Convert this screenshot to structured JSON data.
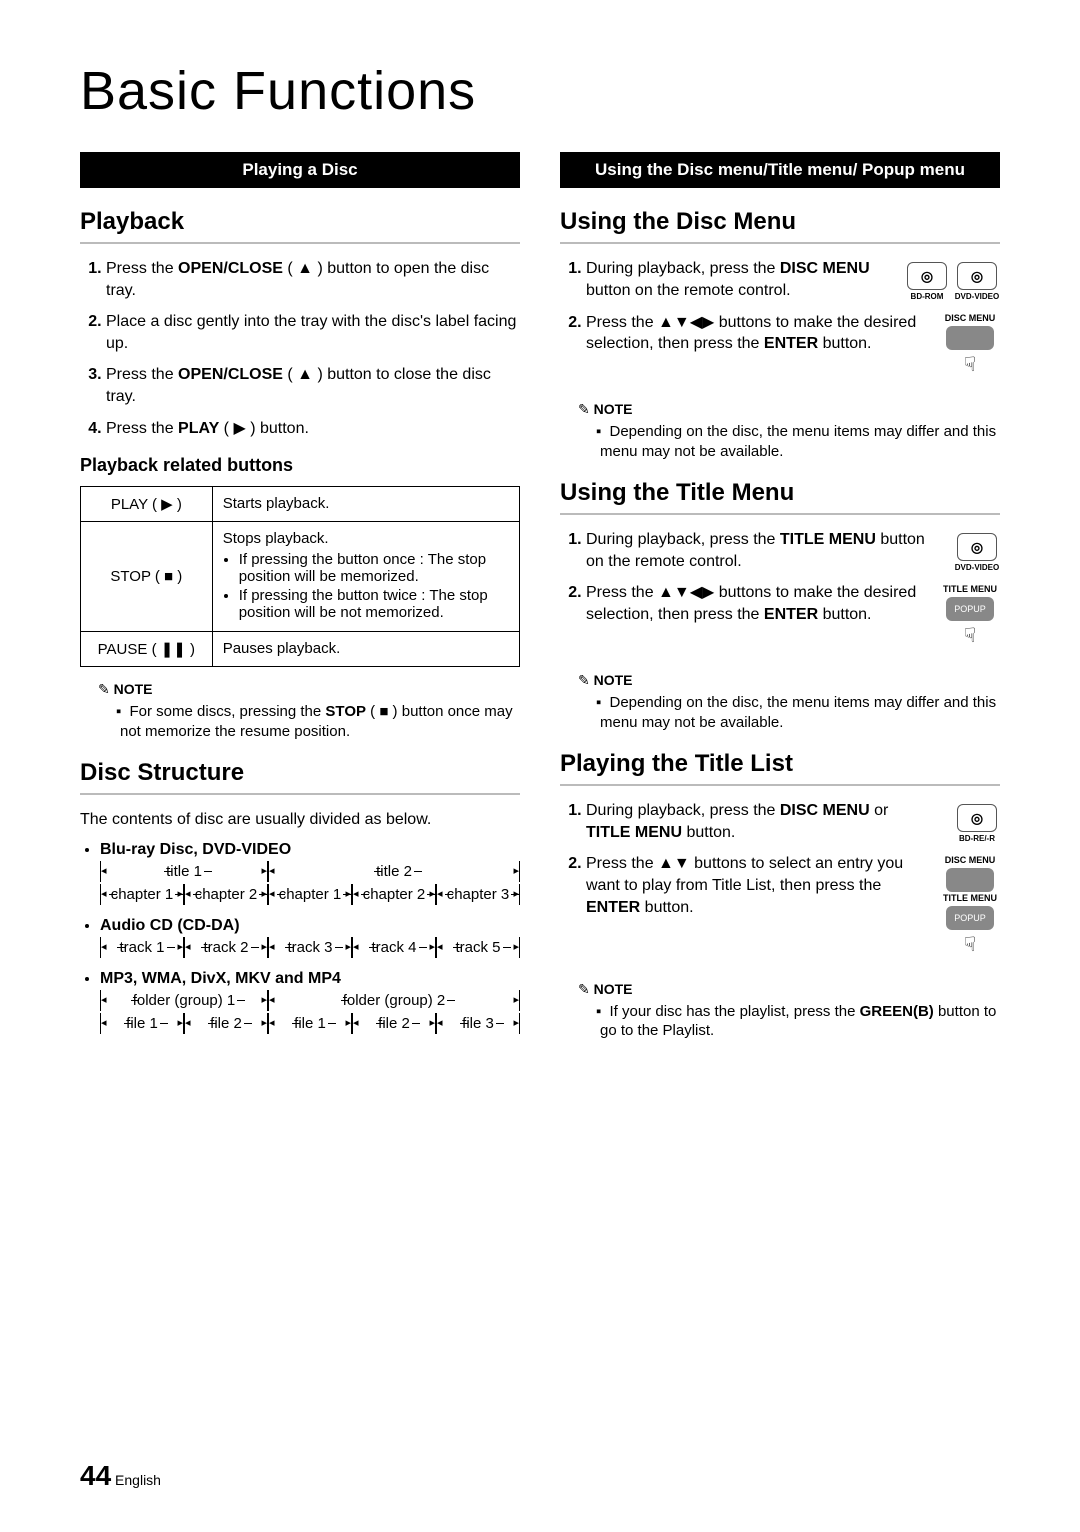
{
  "page": {
    "title": "Basic Functions",
    "number": "44",
    "lang": "English"
  },
  "left": {
    "banner": "Playing a Disc",
    "playback": {
      "heading": "Playback",
      "steps": [
        {
          "pre": "Press the ",
          "bold": "OPEN/CLOSE",
          "post": " ( ▲ ) button to open the disc tray."
        },
        {
          "pre": "",
          "bold": "",
          "post": "Place a disc gently into the tray with the disc's label facing up."
        },
        {
          "pre": "Press the ",
          "bold": "OPEN/CLOSE",
          "post": " ( ▲ ) button to close the disc tray."
        },
        {
          "pre": "Press the ",
          "bold": "PLAY",
          "post": " ( ▶ ) button."
        }
      ]
    },
    "buttons_table": {
      "heading": "Playback related buttons",
      "rows": [
        {
          "label": "PLAY ( ▶ )",
          "desc": "Starts playback.",
          "bullets": []
        },
        {
          "label": "STOP ( ■ )",
          "desc": "Stops playback.",
          "bullets": [
            "If pressing the button once : The stop position will be memorized.",
            "If pressing the button twice : The stop position will be not memorized."
          ]
        },
        {
          "label": "PAUSE ( ❚❚ )",
          "desc": "Pauses playback.",
          "bullets": []
        }
      ]
    },
    "note1": {
      "label": "NOTE",
      "items": [
        "For some discs, pressing the STOP ( ■ ) button once may not memorize the resume position."
      ]
    },
    "structure": {
      "heading": "Disc Structure",
      "intro": "The contents of disc are usually divided as below.",
      "groups": [
        {
          "title": "Blu-ray Disc, DVD-VIDEO",
          "rows": [
            [
              {
                "t": "title 1",
                "f": 2
              },
              {
                "t": "title 2",
                "f": 3
              }
            ],
            [
              {
                "t": "chapter 1",
                "f": 1
              },
              {
                "t": "chapter 2",
                "f": 1
              },
              {
                "t": "chapter 1",
                "f": 1
              },
              {
                "t": "chapter 2",
                "f": 1
              },
              {
                "t": "chapter 3",
                "f": 1
              }
            ]
          ]
        },
        {
          "title": "Audio CD (CD-DA)",
          "rows": [
            [
              {
                "t": "track 1",
                "f": 1
              },
              {
                "t": "track 2",
                "f": 1
              },
              {
                "t": "track 3",
                "f": 1
              },
              {
                "t": "track 4",
                "f": 1
              },
              {
                "t": "track 5",
                "f": 1
              }
            ]
          ]
        },
        {
          "title": "MP3, WMA, DivX, MKV and MP4",
          "rows": [
            [
              {
                "t": "folder (group) 1",
                "f": 2
              },
              {
                "t": "folder (group) 2",
                "f": 3
              }
            ],
            [
              {
                "t": "file 1",
                "f": 1
              },
              {
                "t": "file 2",
                "f": 1
              },
              {
                "t": "file 1",
                "f": 1
              },
              {
                "t": "file 2",
                "f": 1
              },
              {
                "t": "file 3",
                "f": 1
              }
            ]
          ]
        }
      ]
    }
  },
  "right": {
    "banner": "Using the Disc menu/Title menu/ Popup menu",
    "disc_menu": {
      "heading": "Using the Disc Menu",
      "badges": [
        "BD-ROM",
        "DVD-VIDEO"
      ],
      "remote": {
        "lbl1": "DISC MENU",
        "btn": "",
        "hand": "☟"
      },
      "steps": [
        {
          "text": "During playback, press the DISC MENU button on the remote control.",
          "bolds": [
            "DISC MENU"
          ]
        },
        {
          "text": "Press the ▲▼◀▶ buttons to make the desired selection, then press the ENTER button.",
          "bolds": [
            "ENTER"
          ]
        }
      ],
      "note": {
        "label": "NOTE",
        "items": [
          "Depending on the disc, the menu items may differ and this menu may not be available."
        ]
      }
    },
    "title_menu": {
      "heading": "Using the Title Menu",
      "badges": [
        "DVD-VIDEO"
      ],
      "remote": {
        "lbl1": "TITLE MENU",
        "btn": "POPUP",
        "hand": "☟"
      },
      "steps": [
        {
          "text": "During playback, press the TITLE MENU button on the remote control.",
          "bolds": [
            "TITLE MENU"
          ]
        },
        {
          "text": "Press the ▲▼◀▶ buttons to make the desired selection, then press the ENTER button.",
          "bolds": [
            "ENTER"
          ]
        }
      ],
      "note": {
        "label": "NOTE",
        "items": [
          "Depending on the disc, the menu items may differ and this menu may not be available."
        ]
      }
    },
    "title_list": {
      "heading": "Playing the Title List",
      "badges": [
        "BD-RE/-R"
      ],
      "remote": {
        "lbl1": "DISC MENU",
        "lbl2": "TITLE MENU",
        "btn": "POPUP",
        "hand": "☟"
      },
      "steps": [
        {
          "text": "During playback, press the DISC MENU or TITLE MENU button.",
          "bolds": [
            "DISC MENU",
            "TITLE MENU"
          ]
        },
        {
          "text": "Press the ▲▼ buttons to select an entry you want to play from Title List, then press the ENTER button.",
          "bolds": [
            "ENTER"
          ]
        }
      ],
      "note": {
        "label": "NOTE",
        "items": [
          "If your disc has the playlist, press the GREEN(B) button to go to the Playlist."
        ]
      }
    }
  }
}
